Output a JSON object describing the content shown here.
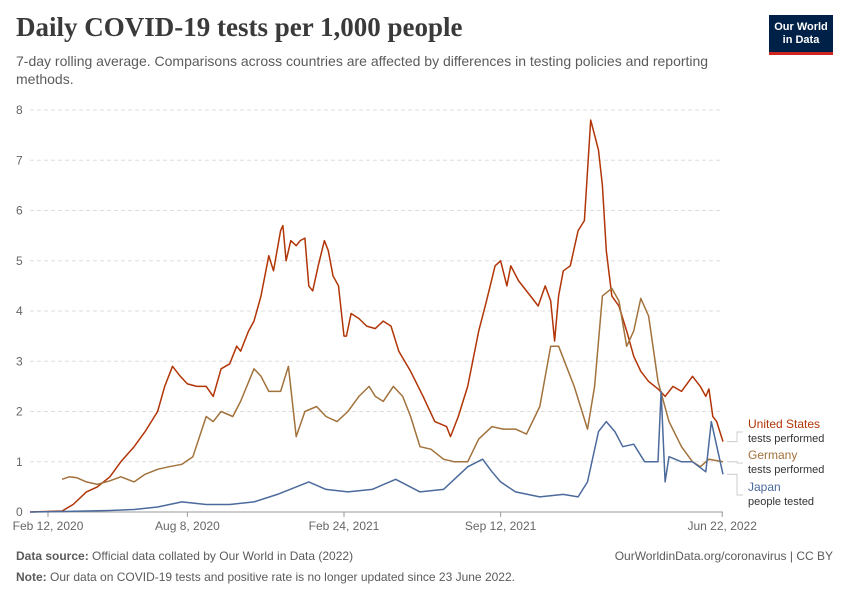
{
  "header": {
    "title": "Daily COVID-19 tests per 1,000 people",
    "subtitle": "7-day rolling average. Comparisons across countries are affected by differences in testing policies and reporting methods.",
    "logo_line1": "Our World",
    "logo_line2": "in Data"
  },
  "footer": {
    "source_label": "Data source:",
    "source_text": "Official data collated by Our World in Data (2022)",
    "note_label": "Note:",
    "note_text": "Our data on COVID-19 tests and positive rate is no longer updated since 23 June 2022.",
    "url_text": "OurWorldinData.org/coronavirus | CC BY"
  },
  "colors": {
    "us": "#b13507",
    "germany": "#a2723c",
    "japan": "#4c6a9c",
    "grid": "#dddddd",
    "axis": "#999999"
  },
  "chart_data": {
    "type": "line",
    "title": "Daily COVID-19 tests per 1,000 people",
    "ylim": [
      0,
      8
    ],
    "yticks": [
      0,
      1,
      2,
      3,
      4,
      5,
      6,
      7,
      8
    ],
    "xlim": [
      "2020-01-20",
      "2022-06-23"
    ],
    "xticks": [
      {
        "date": "2020-02-12",
        "label": "Feb 12, 2020"
      },
      {
        "date": "2020-08-08",
        "label": "Aug 8, 2020"
      },
      {
        "date": "2021-02-24",
        "label": "Feb 24, 2021"
      },
      {
        "date": "2021-09-12",
        "label": "Sep 12, 2021"
      },
      {
        "date": "2022-06-22",
        "label": "Jun 22, 2022"
      }
    ],
    "grid": "horizontal-dashed",
    "series": [
      {
        "key": "us",
        "name": "United States",
        "sublabel": "tests performed",
        "color": "#b13507",
        "points": [
          [
            "2020-01-20",
            0
          ],
          [
            "2020-03-01",
            0.02
          ],
          [
            "2020-03-15",
            0.15
          ],
          [
            "2020-04-01",
            0.4
          ],
          [
            "2020-04-15",
            0.5
          ],
          [
            "2020-05-01",
            0.7
          ],
          [
            "2020-05-15",
            1.0
          ],
          [
            "2020-06-01",
            1.3
          ],
          [
            "2020-06-15",
            1.6
          ],
          [
            "2020-07-01",
            2.0
          ],
          [
            "2020-07-10",
            2.5
          ],
          [
            "2020-07-20",
            2.9
          ],
          [
            "2020-07-30",
            2.7
          ],
          [
            "2020-08-08",
            2.55
          ],
          [
            "2020-08-20",
            2.5
          ],
          [
            "2020-09-01",
            2.5
          ],
          [
            "2020-09-10",
            2.3
          ],
          [
            "2020-09-20",
            2.85
          ],
          [
            "2020-10-01",
            2.95
          ],
          [
            "2020-10-10",
            3.3
          ],
          [
            "2020-10-15",
            3.2
          ],
          [
            "2020-10-25",
            3.6
          ],
          [
            "2020-11-01",
            3.8
          ],
          [
            "2020-11-10",
            4.3
          ],
          [
            "2020-11-20",
            5.1
          ],
          [
            "2020-11-26",
            4.8
          ],
          [
            "2020-12-05",
            5.6
          ],
          [
            "2020-12-08",
            5.7
          ],
          [
            "2020-12-12",
            5.0
          ],
          [
            "2020-12-18",
            5.4
          ],
          [
            "2020-12-25",
            5.3
          ],
          [
            "2020-12-30",
            5.4
          ],
          [
            "2021-01-05",
            5.45
          ],
          [
            "2021-01-10",
            4.5
          ],
          [
            "2021-01-15",
            4.4
          ],
          [
            "2021-01-22",
            4.9
          ],
          [
            "2021-01-30",
            5.4
          ],
          [
            "2021-02-04",
            5.2
          ],
          [
            "2021-02-10",
            4.7
          ],
          [
            "2021-02-17",
            4.5
          ],
          [
            "2021-02-24",
            3.5
          ],
          [
            "2021-02-27",
            3.5
          ],
          [
            "2021-03-05",
            3.95
          ],
          [
            "2021-03-15",
            3.85
          ],
          [
            "2021-03-25",
            3.7
          ],
          [
            "2021-04-05",
            3.65
          ],
          [
            "2021-04-15",
            3.8
          ],
          [
            "2021-04-25",
            3.7
          ],
          [
            "2021-05-05",
            3.2
          ],
          [
            "2021-05-20",
            2.8
          ],
          [
            "2021-06-05",
            2.3
          ],
          [
            "2021-06-20",
            1.8
          ],
          [
            "2021-07-05",
            1.7
          ],
          [
            "2021-07-10",
            1.5
          ],
          [
            "2021-07-20",
            1.9
          ],
          [
            "2021-08-01",
            2.5
          ],
          [
            "2021-08-15",
            3.6
          ],
          [
            "2021-08-25",
            4.2
          ],
          [
            "2021-09-05",
            4.9
          ],
          [
            "2021-09-12",
            5.0
          ],
          [
            "2021-09-20",
            4.5
          ],
          [
            "2021-09-25",
            4.9
          ],
          [
            "2021-10-05",
            4.6
          ],
          [
            "2021-10-20",
            4.3
          ],
          [
            "2021-10-30",
            4.1
          ],
          [
            "2021-11-08",
            4.5
          ],
          [
            "2021-11-15",
            4.2
          ],
          [
            "2021-11-20",
            3.4
          ],
          [
            "2021-11-25",
            4.3
          ],
          [
            "2021-12-01",
            4.8
          ],
          [
            "2021-12-10",
            4.9
          ],
          [
            "2021-12-20",
            5.6
          ],
          [
            "2021-12-28",
            5.8
          ],
          [
            "2022-01-05",
            7.8
          ],
          [
            "2022-01-10",
            7.5
          ],
          [
            "2022-01-15",
            7.2
          ],
          [
            "2022-01-20",
            6.5
          ],
          [
            "2022-01-25",
            5.2
          ],
          [
            "2022-02-01",
            4.3
          ],
          [
            "2022-02-10",
            4.1
          ],
          [
            "2022-02-20",
            3.6
          ],
          [
            "2022-03-01",
            3.1
          ],
          [
            "2022-03-10",
            2.8
          ],
          [
            "2022-03-20",
            2.6
          ],
          [
            "2022-04-01",
            2.45
          ],
          [
            "2022-04-10",
            2.3
          ],
          [
            "2022-04-20",
            2.5
          ],
          [
            "2022-05-01",
            2.4
          ],
          [
            "2022-05-15",
            2.7
          ],
          [
            "2022-05-25",
            2.5
          ],
          [
            "2022-06-01",
            2.3
          ],
          [
            "2022-06-05",
            2.45
          ],
          [
            "2022-06-10",
            1.9
          ],
          [
            "2022-06-15",
            1.8
          ],
          [
            "2022-06-23",
            1.4
          ]
        ]
      },
      {
        "key": "germany",
        "name": "Germany",
        "sublabel": "tests performed",
        "color": "#a2723c",
        "points": [
          [
            "2020-03-01",
            0.65
          ],
          [
            "2020-03-10",
            0.7
          ],
          [
            "2020-03-20",
            0.68
          ],
          [
            "2020-04-01",
            0.6
          ],
          [
            "2020-04-15",
            0.55
          ],
          [
            "2020-05-01",
            0.62
          ],
          [
            "2020-05-15",
            0.7
          ],
          [
            "2020-06-01",
            0.6
          ],
          [
            "2020-06-15",
            0.75
          ],
          [
            "2020-07-01",
            0.85
          ],
          [
            "2020-07-15",
            0.9
          ],
          [
            "2020-08-01",
            0.95
          ],
          [
            "2020-08-15",
            1.1
          ],
          [
            "2020-09-01",
            1.9
          ],
          [
            "2020-09-10",
            1.8
          ],
          [
            "2020-09-20",
            2.0
          ],
          [
            "2020-10-05",
            1.9
          ],
          [
            "2020-10-15",
            2.2
          ],
          [
            "2020-11-01",
            2.85
          ],
          [
            "2020-11-10",
            2.7
          ],
          [
            "2020-11-20",
            2.4
          ],
          [
            "2020-12-05",
            2.4
          ],
          [
            "2020-12-15",
            2.9
          ],
          [
            "2020-12-25",
            1.5
          ],
          [
            "2021-01-05",
            2.0
          ],
          [
            "2021-01-20",
            2.1
          ],
          [
            "2021-02-01",
            1.9
          ],
          [
            "2021-02-15",
            1.8
          ],
          [
            "2021-03-01",
            2.0
          ],
          [
            "2021-03-15",
            2.3
          ],
          [
            "2021-03-28",
            2.5
          ],
          [
            "2021-04-05",
            2.3
          ],
          [
            "2021-04-15",
            2.2
          ],
          [
            "2021-04-28",
            2.5
          ],
          [
            "2021-05-10",
            2.3
          ],
          [
            "2021-05-20",
            1.9
          ],
          [
            "2021-06-01",
            1.3
          ],
          [
            "2021-06-15",
            1.25
          ],
          [
            "2021-07-01",
            1.05
          ],
          [
            "2021-07-15",
            1.0
          ],
          [
            "2021-08-01",
            1.0
          ],
          [
            "2021-08-15",
            1.45
          ],
          [
            "2021-09-01",
            1.7
          ],
          [
            "2021-09-15",
            1.65
          ],
          [
            "2021-10-01",
            1.65
          ],
          [
            "2021-10-15",
            1.55
          ],
          [
            "2021-11-01",
            2.1
          ],
          [
            "2021-11-15",
            3.3
          ],
          [
            "2021-11-25",
            3.3
          ],
          [
            "2021-12-15",
            2.5
          ],
          [
            "2022-01-01",
            1.65
          ],
          [
            "2022-01-10",
            2.5
          ],
          [
            "2022-01-20",
            4.3
          ],
          [
            "2022-02-01",
            4.45
          ],
          [
            "2022-02-10",
            4.2
          ],
          [
            "2022-02-20",
            3.3
          ],
          [
            "2022-03-01",
            3.6
          ],
          [
            "2022-03-10",
            4.25
          ],
          [
            "2022-03-20",
            3.9
          ],
          [
            "2022-04-01",
            2.6
          ],
          [
            "2022-04-15",
            1.8
          ],
          [
            "2022-05-01",
            1.3
          ],
          [
            "2022-05-15",
            1.0
          ],
          [
            "2022-05-25",
            0.9
          ],
          [
            "2022-06-05",
            1.05
          ],
          [
            "2022-06-23",
            1.0
          ]
        ]
      },
      {
        "key": "japan",
        "name": "Japan",
        "sublabel": "people tested",
        "color": "#4c6a9c",
        "points": [
          [
            "2020-01-20",
            0
          ],
          [
            "2020-03-01",
            0.01
          ],
          [
            "2020-04-01",
            0.02
          ],
          [
            "2020-05-01",
            0.03
          ],
          [
            "2020-06-01",
            0.05
          ],
          [
            "2020-07-01",
            0.1
          ],
          [
            "2020-08-01",
            0.2
          ],
          [
            "2020-09-01",
            0.15
          ],
          [
            "2020-10-01",
            0.15
          ],
          [
            "2020-11-01",
            0.2
          ],
          [
            "2020-12-01",
            0.35
          ],
          [
            "2021-01-10",
            0.6
          ],
          [
            "2021-02-01",
            0.45
          ],
          [
            "2021-03-01",
            0.4
          ],
          [
            "2021-04-01",
            0.45
          ],
          [
            "2021-05-01",
            0.65
          ],
          [
            "2021-06-01",
            0.4
          ],
          [
            "2021-07-01",
            0.45
          ],
          [
            "2021-08-01",
            0.9
          ],
          [
            "2021-08-20",
            1.05
          ],
          [
            "2021-09-01",
            0.8
          ],
          [
            "2021-09-12",
            0.6
          ],
          [
            "2021-10-01",
            0.4
          ],
          [
            "2021-11-01",
            0.3
          ],
          [
            "2021-12-01",
            0.35
          ],
          [
            "2021-12-20",
            0.3
          ],
          [
            "2022-01-01",
            0.6
          ],
          [
            "2022-01-15",
            1.6
          ],
          [
            "2022-01-25",
            1.8
          ],
          [
            "2022-02-05",
            1.6
          ],
          [
            "2022-02-15",
            1.3
          ],
          [
            "2022-03-01",
            1.35
          ],
          [
            "2022-03-15",
            1.0
          ],
          [
            "2022-04-01",
            1.0
          ],
          [
            "2022-04-05",
            2.4
          ],
          [
            "2022-04-10",
            0.6
          ],
          [
            "2022-04-15",
            1.1
          ],
          [
            "2022-05-01",
            1.0
          ],
          [
            "2022-05-15",
            1.0
          ],
          [
            "2022-06-01",
            0.8
          ],
          [
            "2022-06-08",
            1.8
          ],
          [
            "2022-06-23",
            0.75
          ]
        ]
      }
    ],
    "legend_placement": "right"
  }
}
